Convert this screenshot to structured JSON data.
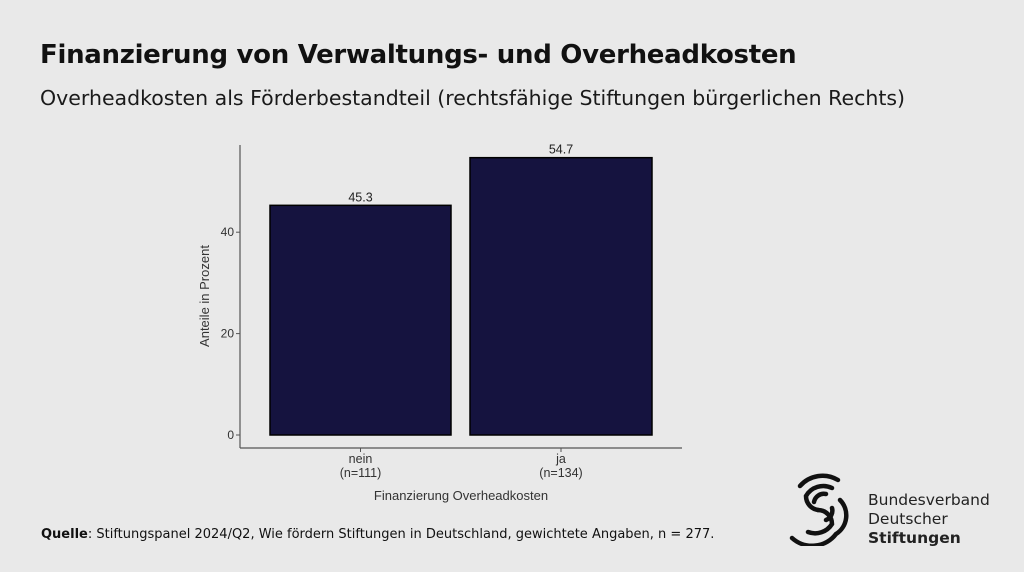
{
  "title": "Finanzierung von Verwaltungs- und Overheadkosten",
  "subtitle": "Overheadkosten als Förderbestandteil (rechtsfähige Stiftungen bürgerlichen Rechts)",
  "source": {
    "label": "Quelle",
    "text": ": Stiftungspanel 2024/Q2, Wie fördern Stiftungen in Deutschland, gewichtete Angaben, n = 277."
  },
  "logo": {
    "line1": "Bundesverband",
    "line2": "Deutscher",
    "line3": "Stiftungen"
  },
  "colors": {
    "bar": "#15133f",
    "background": "#e9e9e9"
  },
  "chart_data": {
    "type": "bar",
    "categories": [
      "nein\n(n=111)",
      "ja\n(n=134)"
    ],
    "category_lines": [
      [
        "nein",
        "(n=111)"
      ],
      [
        "ja",
        "(n=134)"
      ]
    ],
    "values": [
      45.3,
      54.7
    ],
    "data_labels": [
      "45.3",
      "54.7"
    ],
    "xlabel": "Finanzierung Overheadkosten",
    "ylabel": "Anteile in Prozent",
    "yticks": [
      0,
      20,
      40
    ],
    "ylim": [
      0,
      57
    ],
    "grid": false
  }
}
